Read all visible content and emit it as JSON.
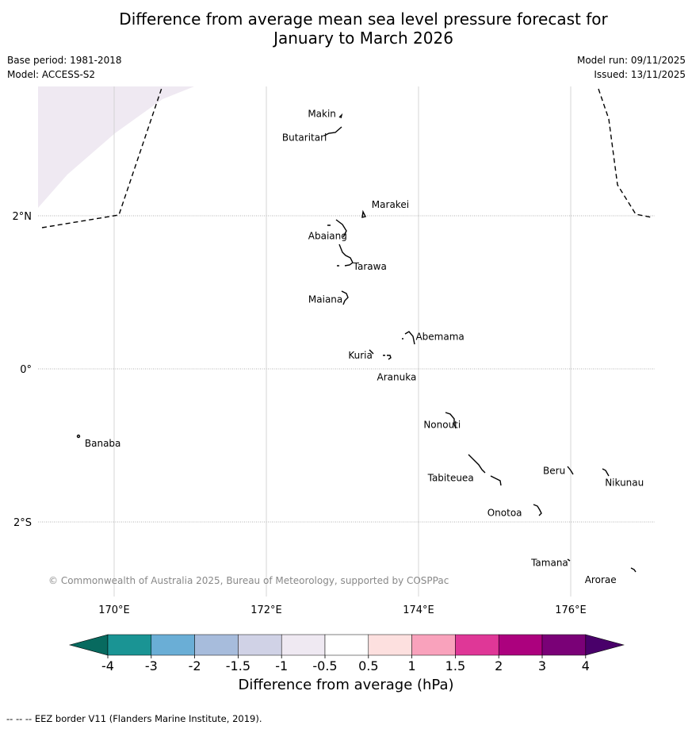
{
  "title_line1": "Difference from average mean sea level pressure forecast for",
  "title_line2": "January to March 2026",
  "base_period": "Base period: 1981-2018",
  "model": "Model: ACCESS-S2",
  "model_run": "Model run: 09/11/2025",
  "issued": "Issued: 13/11/2025",
  "copyright": "© Commonwealth of Australia 2025, Bureau of Meteorology, supported by COSPPac",
  "footer": "--  --  -- EEZ border V11 (Flanders Marine Institute, 2019).",
  "colorbar": {
    "title": "Difference from average (hPa)",
    "ticks": [
      "-4",
      "-3",
      "-2",
      "-1.5",
      "-1",
      "-0.5",
      "0.5",
      "1",
      "1.5",
      "2",
      "3",
      "4"
    ],
    "colors": [
      "#1a9494",
      "#6aaed6",
      "#a7bcdc",
      "#d0d2e6",
      "#efe9f2",
      "#ffffff",
      "#fde0df",
      "#f9a2bc",
      "#df3797",
      "#ac017e",
      "#7a0177"
    ],
    "under_color": "#076a5f",
    "over_color": "#49006a"
  },
  "map": {
    "lat_labels": [
      {
        "text": "2°N",
        "lat": 2
      },
      {
        "text": "0°",
        "lat": 0
      },
      {
        "text": "2°S",
        "lat": -2
      }
    ],
    "lon_labels": [
      {
        "text": "170°E",
        "lon": 170
      },
      {
        "text": "172°E",
        "lon": 172
      },
      {
        "text": "174°E",
        "lon": 174
      },
      {
        "text": "176°E",
        "lon": 176
      }
    ],
    "islands": [
      {
        "name": "Makin",
        "lon": 172.92,
        "lat": 3.31
      },
      {
        "name": "Butaritari",
        "lon": 172.78,
        "lat": 3.07
      },
      {
        "name": "Marakei",
        "lon": 173.3,
        "lat": 2.04
      },
      {
        "name": "Abaiang",
        "lon": 173.05,
        "lat": 1.82
      },
      {
        "name": "Tarawa",
        "lon": 173.08,
        "lat": 1.42
      },
      {
        "name": "Maiana",
        "lon": 173.02,
        "lat": 0.93
      },
      {
        "name": "Abemama",
        "lon": 173.88,
        "lat": 0.4
      },
      {
        "name": "Kuria",
        "lon": 173.42,
        "lat": 0.22
      },
      {
        "name": "Aranuka",
        "lon": 173.62,
        "lat": 0.17
      },
      {
        "name": "Nonouti",
        "lon": 174.42,
        "lat": -0.67
      },
      {
        "name": "Banaba",
        "lon": 169.53,
        "lat": -0.88
      },
      {
        "name": "Tabiteuea",
        "lon": 174.85,
        "lat": -1.35
      },
      {
        "name": "Beru",
        "lon": 175.99,
        "lat": -1.33
      },
      {
        "name": "Nikunau",
        "lon": 176.45,
        "lat": -1.35
      },
      {
        "name": "Onotoa",
        "lon": 175.57,
        "lat": -1.85
      },
      {
        "name": "Tamana",
        "lon": 175.98,
        "lat": -2.5
      },
      {
        "name": "Arorae",
        "lon": 176.82,
        "lat": -2.64
      }
    ],
    "shaded_region": {
      "category": "-1 to -0.5",
      "color": "#efe9f2"
    }
  }
}
